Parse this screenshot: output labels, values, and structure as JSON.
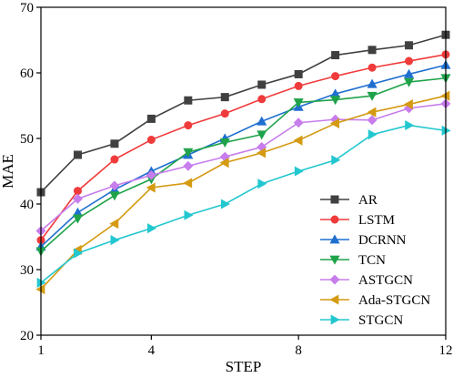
{
  "chart_data": {
    "type": "line",
    "xlabel": "STEP",
    "ylabel": "MAE",
    "xlim": [
      1,
      12
    ],
    "ylim": [
      20,
      70
    ],
    "x_ticks": [
      1,
      4,
      8,
      12
    ],
    "y_ticks": [
      20,
      30,
      40,
      50,
      60,
      70
    ],
    "grid": false,
    "legend_position": "bottom-right",
    "x": [
      1,
      2,
      3,
      4,
      5,
      6,
      7,
      8,
      9,
      10,
      11,
      12
    ],
    "series": [
      {
        "name": "AR",
        "marker": "square",
        "color": "#404040",
        "values": [
          41.8,
          47.5,
          49.2,
          53.0,
          55.8,
          56.3,
          58.2,
          59.8,
          62.7,
          63.5,
          64.2,
          65.8
        ]
      },
      {
        "name": "LSTM",
        "marker": "circle",
        "color": "#ef3b3b",
        "values": [
          34.5,
          42.0,
          46.8,
          49.8,
          52.0,
          53.8,
          56.0,
          58.0,
          59.5,
          60.8,
          61.8,
          62.8
        ]
      },
      {
        "name": "DCRNN",
        "marker": "triangle-up",
        "color": "#1f6fd0",
        "values": [
          33.5,
          38.7,
          42.2,
          45.0,
          47.5,
          50.0,
          52.6,
          54.8,
          56.8,
          58.3,
          59.8,
          61.2
        ]
      },
      {
        "name": "TCN",
        "marker": "triangle-down",
        "color": "#1fa34a",
        "values": [
          32.8,
          37.8,
          41.3,
          43.8,
          47.9,
          49.4,
          50.6,
          55.5,
          55.9,
          56.5,
          58.6,
          59.2
        ]
      },
      {
        "name": "ASTGCN",
        "marker": "diamond",
        "color": "#c77dec",
        "values": [
          35.9,
          40.8,
          42.8,
          44.4,
          45.8,
          47.2,
          48.7,
          52.4,
          52.9,
          52.8,
          54.6,
          55.3
        ]
      },
      {
        "name": "Ada-STGCN",
        "marker": "triangle-left",
        "color": "#d49a12",
        "values": [
          27.0,
          33.0,
          37.0,
          42.5,
          43.2,
          46.3,
          47.8,
          49.7,
          52.3,
          54.0,
          55.2,
          56.5
        ]
      },
      {
        "name": "STGCN",
        "marker": "triangle-right",
        "color": "#22c7cf",
        "values": [
          28.0,
          32.5,
          34.5,
          36.3,
          38.3,
          40.0,
          43.1,
          45.0,
          46.7,
          50.6,
          52.0,
          51.2
        ]
      }
    ]
  }
}
